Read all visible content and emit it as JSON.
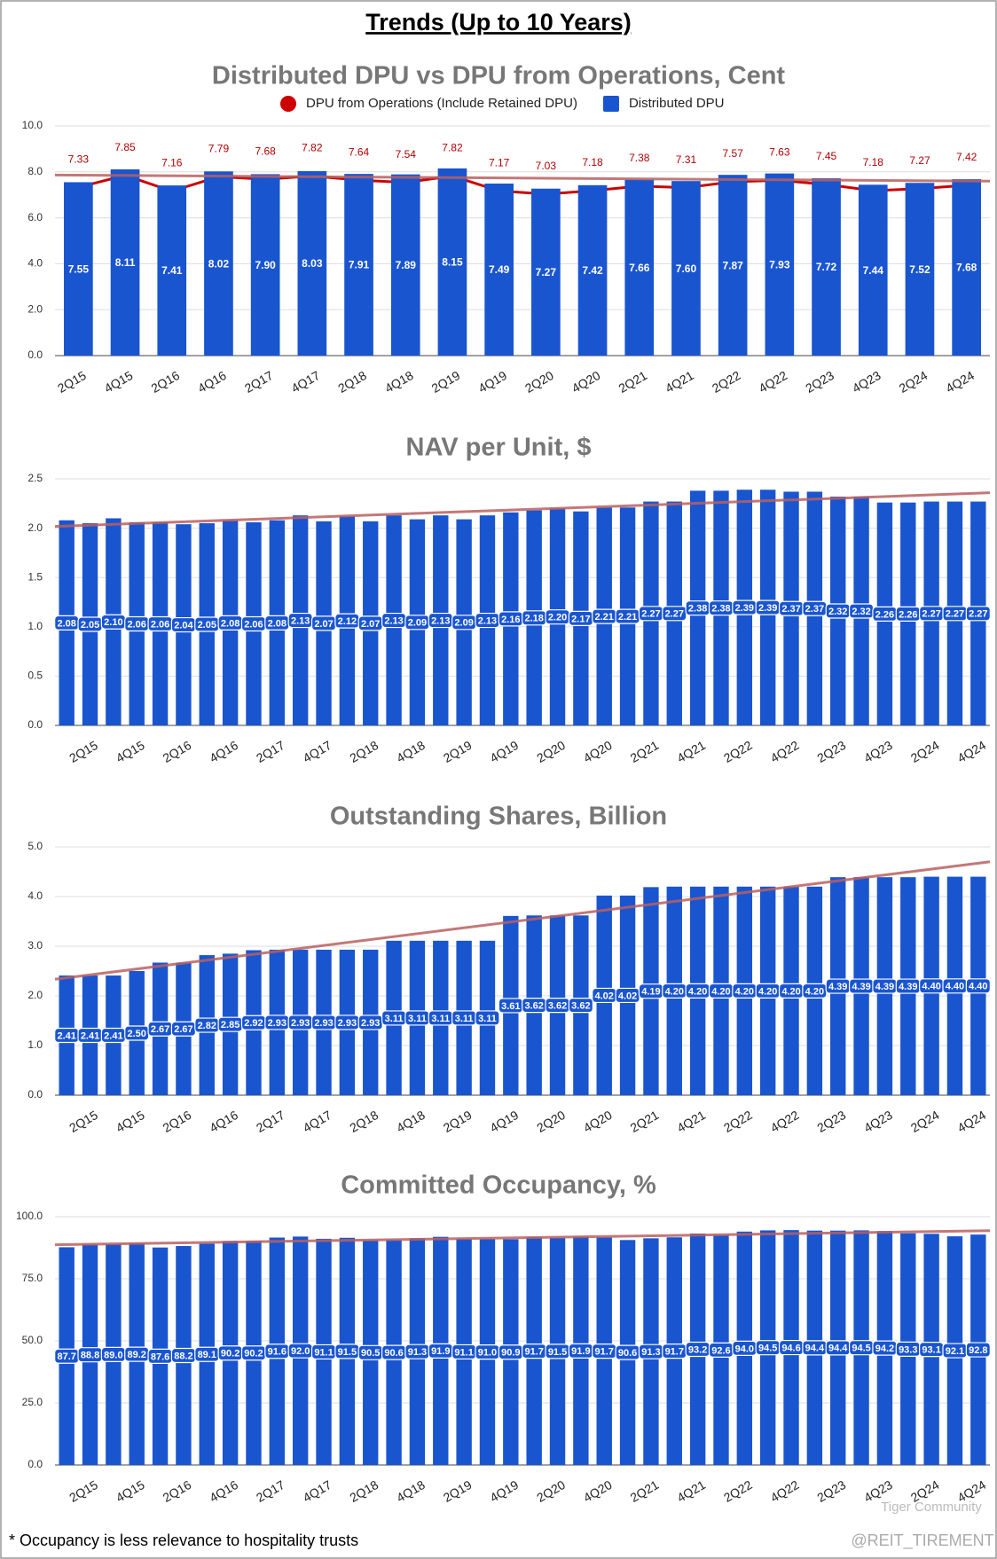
{
  "title": "Trends (Up to 10 Years)",
  "footnote": "* Occupancy is less relevance to hospitality trusts",
  "watermark": [
    "Tiger Community",
    "@REIT_TIREMENT"
  ],
  "chart_data": [
    {
      "type": "combo",
      "title": "Distributed DPU vs DPU from Operations, Cent",
      "categories": [
        "2Q15",
        "4Q15",
        "2Q16",
        "4Q16",
        "2Q17",
        "4Q17",
        "2Q18",
        "4Q18",
        "2Q19",
        "4Q19",
        "2Q20",
        "4Q20",
        "2Q21",
        "4Q21",
        "2Q22",
        "4Q22",
        "2Q23",
        "4Q23",
        "2Q24",
        "4Q24"
      ],
      "series": [
        {
          "name": "DPU from Operations (Include Retained DPU)",
          "type": "line",
          "color": "#cc0000",
          "values": [
            7.33,
            7.85,
            7.16,
            7.79,
            7.68,
            7.82,
            7.64,
            7.54,
            7.82,
            7.17,
            7.03,
            7.18,
            7.38,
            7.31,
            7.57,
            7.63,
            7.45,
            7.18,
            7.27,
            7.42
          ],
          "value_labels": [
            "7.33",
            "7.85",
            "7.16",
            "7.79",
            "7.68",
            "7.82",
            "7.64",
            "7.54",
            "7.82",
            "7.17",
            "7.03",
            "7.18",
            "7.38",
            "7.31",
            "7.57",
            "7.63",
            "7.45",
            "7.18",
            "7.27",
            "7.42"
          ]
        },
        {
          "name": "Distributed DPU",
          "type": "bar",
          "color": "#1a55d0",
          "trendline": true,
          "values": [
            7.55,
            8.11,
            7.41,
            8.02,
            7.9,
            8.03,
            7.91,
            7.89,
            8.15,
            7.49,
            7.27,
            7.42,
            7.66,
            7.6,
            7.87,
            7.93,
            7.72,
            7.44,
            7.52,
            7.68
          ],
          "value_labels": [
            "7.55",
            "8.11",
            "7.41",
            "8.02",
            "7.90",
            "8.03",
            "7.91",
            "7.89",
            "8.15",
            "7.49",
            "7.27",
            "7.42",
            "7.66",
            "7.60",
            "7.87",
            "7.93",
            "7.72",
            "7.44",
            "7.52",
            "7.68"
          ]
        }
      ],
      "ylim": [
        0,
        10
      ],
      "yticks": [
        {
          "value": 0,
          "label": "0.0"
        },
        {
          "value": 2,
          "label": "2.0"
        },
        {
          "value": 4,
          "label": "4.0"
        },
        {
          "value": 6,
          "label": "6.0"
        },
        {
          "value": 8,
          "label": "8.0"
        },
        {
          "value": 10,
          "label": "10.0"
        }
      ],
      "grid": true,
      "legend": "top",
      "trendline_color": "#b86060"
    },
    {
      "type": "bar",
      "title": "NAV per Unit, $",
      "categories": [
        null,
        "2Q15",
        null,
        "4Q15",
        null,
        "2Q16",
        null,
        "4Q16",
        null,
        "2Q17",
        null,
        "4Q17",
        null,
        "2Q18",
        null,
        "4Q18",
        null,
        "2Q19",
        null,
        "4Q19",
        null,
        "2Q20",
        null,
        "4Q20",
        null,
        "2Q21",
        null,
        "4Q21",
        null,
        "2Q22",
        null,
        "4Q22",
        null,
        "2Q23",
        null,
        "4Q23",
        null,
        "2Q24",
        null,
        "4Q24"
      ],
      "series": [
        {
          "type": "bar",
          "color": "#1a55d0",
          "trendline": true,
          "values": [
            2.08,
            2.05,
            2.1,
            2.06,
            2.06,
            2.04,
            2.05,
            2.08,
            2.06,
            2.08,
            2.13,
            2.07,
            2.12,
            2.07,
            2.13,
            2.09,
            2.13,
            2.09,
            2.13,
            2.16,
            2.18,
            2.2,
            2.17,
            2.21,
            2.21,
            2.27,
            2.27,
            2.38,
            2.38,
            2.39,
            2.39,
            2.37,
            2.37,
            2.32,
            2.32,
            2.26,
            2.26,
            2.27,
            2.27,
            2.27
          ],
          "value_labels": [
            "2.08",
            "2.05",
            "2.10",
            "2.06",
            "2.06",
            "2.04",
            "2.05",
            "2.08",
            "2.06",
            "2.08",
            "2.13",
            "2.07",
            "2.12",
            "2.07",
            "2.13",
            "2.09",
            "2.13",
            "2.09",
            "2.13",
            "2.16",
            "2.18",
            "2.20",
            "2.17",
            "2.21",
            "2.21",
            "2.27",
            "2.27",
            "2.38",
            "2.38",
            "2.39",
            "2.39",
            "2.37",
            "2.37",
            "2.32",
            "2.32",
            "2.26",
            "2.26",
            "2.27",
            "2.27",
            "2.27"
          ]
        }
      ],
      "ylim": [
        0,
        2.5
      ],
      "yticks": [
        {
          "value": 0,
          "label": "0.0"
        },
        0.5,
        {
          "value": 1,
          "label": "1.0"
        },
        1.5,
        {
          "value": 2,
          "label": "2.0"
        },
        2.5
      ],
      "grid": true,
      "trendline_color": "#b86060"
    },
    {
      "type": "bar",
      "title": "Outstanding Shares, Billion",
      "categories": [
        null,
        "2Q15",
        null,
        "4Q15",
        null,
        "2Q16",
        null,
        "4Q16",
        null,
        "2Q17",
        null,
        "4Q17",
        null,
        "2Q18",
        null,
        "4Q18",
        null,
        "2Q19",
        null,
        "4Q19",
        null,
        "2Q20",
        null,
        "4Q20",
        null,
        "2Q21",
        null,
        "4Q21",
        null,
        "2Q22",
        null,
        "4Q22",
        null,
        "2Q23",
        null,
        "4Q23",
        null,
        "2Q24",
        null,
        "4Q24"
      ],
      "series": [
        {
          "type": "bar",
          "color": "#1a55d0",
          "trendline": true,
          "values": [
            2.41,
            2.41,
            2.41,
            2.5,
            2.67,
            2.67,
            2.82,
            2.85,
            2.92,
            2.93,
            2.93,
            2.93,
            2.93,
            2.93,
            3.11,
            3.11,
            3.11,
            3.11,
            3.11,
            3.61,
            3.62,
            3.62,
            3.62,
            4.02,
            4.02,
            4.19,
            4.2,
            4.2,
            4.2,
            4.2,
            4.2,
            4.2,
            4.2,
            4.39,
            4.39,
            4.39,
            4.39,
            4.4,
            4.4,
            4.4
          ],
          "value_labels": [
            "2.41",
            "2.41",
            "2.41",
            "2.50",
            "2.67",
            "2.67",
            "2.82",
            "2.85",
            "2.92",
            "2.93",
            "2.93",
            "2.93",
            "2.93",
            "2.93",
            "3.11",
            "3.11",
            "3.11",
            "3.11",
            "3.11",
            "3.61",
            "3.62",
            "3.62",
            "3.62",
            "4.02",
            "4.02",
            "4.19",
            "4.20",
            "4.20",
            "4.20",
            "4.20",
            "4.20",
            "4.20",
            "4.20",
            "4.39",
            "4.39",
            "4.39",
            "4.39",
            "4.40",
            "4.40",
            "4.40"
          ]
        }
      ],
      "ylim": [
        0,
        5
      ],
      "yticks": [
        {
          "value": 0,
          "label": "0.0"
        },
        {
          "value": 1,
          "label": "1.0"
        },
        {
          "value": 2,
          "label": "2.0"
        },
        {
          "value": 3,
          "label": "3.0"
        },
        {
          "value": 4,
          "label": "4.0"
        },
        {
          "value": 5,
          "label": "5.0"
        }
      ],
      "grid": true,
      "trendline_color": "#b86060"
    },
    {
      "type": "bar",
      "title": "Committed Occupancy, %",
      "categories": [
        null,
        "2Q15",
        null,
        "4Q15",
        null,
        "2Q16",
        null,
        "4Q16",
        null,
        "2Q17",
        null,
        "4Q17",
        null,
        "2Q18",
        null,
        "4Q18",
        null,
        "2Q19",
        null,
        "4Q19",
        null,
        "2Q20",
        null,
        "4Q20",
        null,
        "2Q21",
        null,
        "4Q21",
        null,
        "2Q22",
        null,
        "4Q22",
        null,
        "2Q23",
        null,
        "4Q23",
        null,
        "2Q24",
        null,
        "4Q24"
      ],
      "series": [
        {
          "type": "bar",
          "color": "#1a55d0",
          "trendline": true,
          "values": [
            87.7,
            88.8,
            89,
            89.2,
            87.6,
            88.2,
            89.1,
            90.2,
            90.2,
            91.6,
            92,
            91.1,
            91.5,
            90.5,
            90.6,
            91.3,
            91.9,
            91.1,
            91,
            90.9,
            91.7,
            91.5,
            91.9,
            91.7,
            90.6,
            91.3,
            91.7,
            93.2,
            92.6,
            94,
            94.5,
            94.6,
            94.4,
            94.4,
            94.5,
            94.2,
            93.3,
            93.1,
            92.1,
            92.8
          ],
          "value_labels": [
            "87.7",
            "88.8",
            "89.0",
            "89.2",
            "87.6",
            "88.2",
            "89.1",
            "90.2",
            "90.2",
            "91.6",
            "92.0",
            "91.1",
            "91.5",
            "90.5",
            "90.6",
            "91.3",
            "91.9",
            "91.1",
            "91.0",
            "90.9",
            "91.7",
            "91.5",
            "91.9",
            "91.7",
            "90.6",
            "91.3",
            "91.7",
            "93.2",
            "92.6",
            "94.0",
            "94.5",
            "94.6",
            "94.4",
            "94.4",
            "94.5",
            "94.2",
            "93.3",
            "93.1",
            "92.1",
            "92.8"
          ]
        }
      ],
      "ylim": [
        0,
        100
      ],
      "yticks": [
        {
          "value": 0,
          "label": "0.0"
        },
        {
          "value": 25,
          "label": "25.0"
        },
        {
          "value": 50,
          "label": "50.0"
        },
        {
          "value": 75,
          "label": "75.0"
        },
        {
          "value": 100,
          "label": "100.0"
        }
      ],
      "grid": true,
      "trendline_color": "#b86060"
    }
  ]
}
